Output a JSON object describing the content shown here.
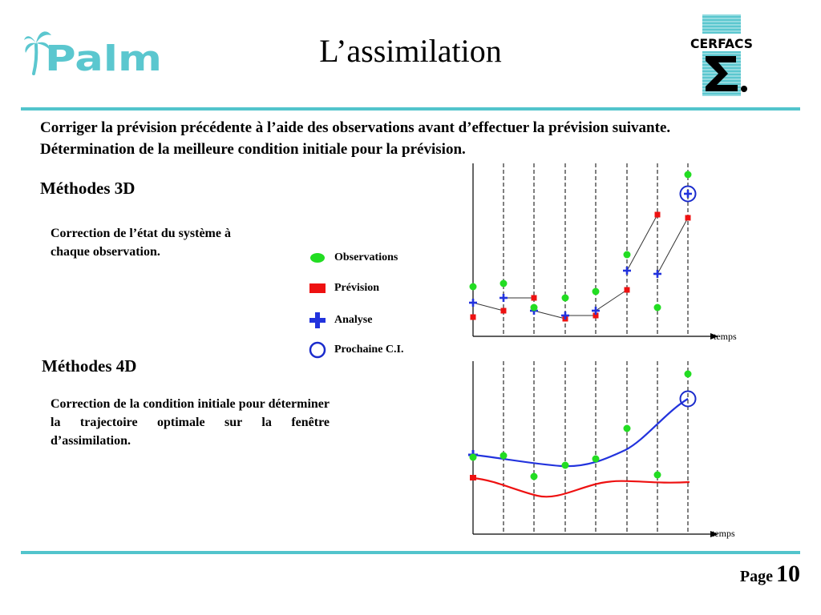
{
  "header": {
    "palm_logo_text": "Palm",
    "title": "L’assimilation",
    "cerfacs_logo_text": "CERFACS"
  },
  "intro": {
    "line1": "Corriger la prévision précédente à l’aide des observations avant d’effectuer la prévision suivante.",
    "line2": "Détermination de la meilleure condition initiale pour la prévision."
  },
  "methods_3d": {
    "heading": "Méthodes 3D",
    "line1": "Correction de l’état du système à",
    "line2": "chaque observation."
  },
  "methods_4d": {
    "heading": "Méthodes 4D",
    "description": "Correction de la condition initiale pour déterminer la trajectoire optimale sur la fenêtre d’assimilation."
  },
  "legend": {
    "observations": "Observations",
    "prevision": "Prévision",
    "analyse": "Analyse",
    "prochaine_ci": "Prochaine C.I."
  },
  "diagram_3d": {
    "axis_label": "temps",
    "observations": [
      0.25,
      0.27,
      0.12,
      0.18,
      0.22,
      0.45,
      0.12,
      0.95
    ],
    "previsions": [
      0.06,
      0.1,
      0.18,
      0.05,
      0.07,
      0.23,
      0.7,
      0.68
    ],
    "analyses": [
      0.15,
      0.18,
      0.1,
      0.07,
      0.1,
      0.35,
      0.33,
      0.83
    ]
  },
  "diagram_4d": {
    "axis_label": "temps",
    "observations": [
      0.42,
      0.43,
      0.3,
      0.37,
      0.41,
      0.6,
      0.31,
      0.94
    ]
  },
  "footer": {
    "page_label": "Page",
    "page_number": "10"
  },
  "colors": {
    "accent": "#52c4cc",
    "observation": "#22dd22",
    "prevision": "#ee1111",
    "analyse": "#2233dd",
    "next_ci": "#1a2bcc"
  }
}
